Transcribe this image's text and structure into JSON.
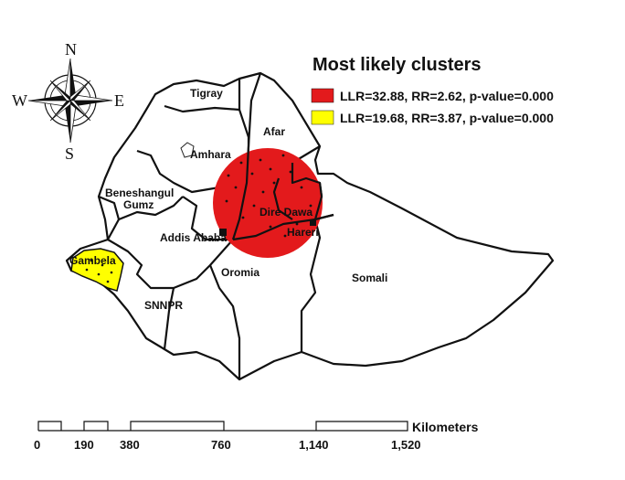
{
  "legend": {
    "title": "Most likely clusters",
    "items": [
      {
        "label": "LLR=32.88, RR=2.62, p-value=0.000",
        "color": "#e31a1c"
      },
      {
        "label": "LLR=19.68, RR=3.87, p-value=0.000",
        "color": "#ffff00"
      }
    ]
  },
  "compass": {
    "n": "N",
    "s": "S",
    "e": "E",
    "w": "W"
  },
  "regions": {
    "tigray": "Tigray",
    "afar": "Afar",
    "amhara": "Amhara",
    "beneshangul": "Beneshangul\nGumz",
    "dire_dawa": "Dire Dawa",
    "hareri": "Hareri",
    "addis_ababa": "Addis Ababa",
    "gambela": "Gambela",
    "oromia": "Oromia",
    "somali": "Somali",
    "snnpr": "SNNPR"
  },
  "scale_bar": {
    "unit": "Kilometers",
    "ticks": [
      "0",
      "190",
      "380",
      "760",
      "1,140",
      "1,520"
    ]
  }
}
